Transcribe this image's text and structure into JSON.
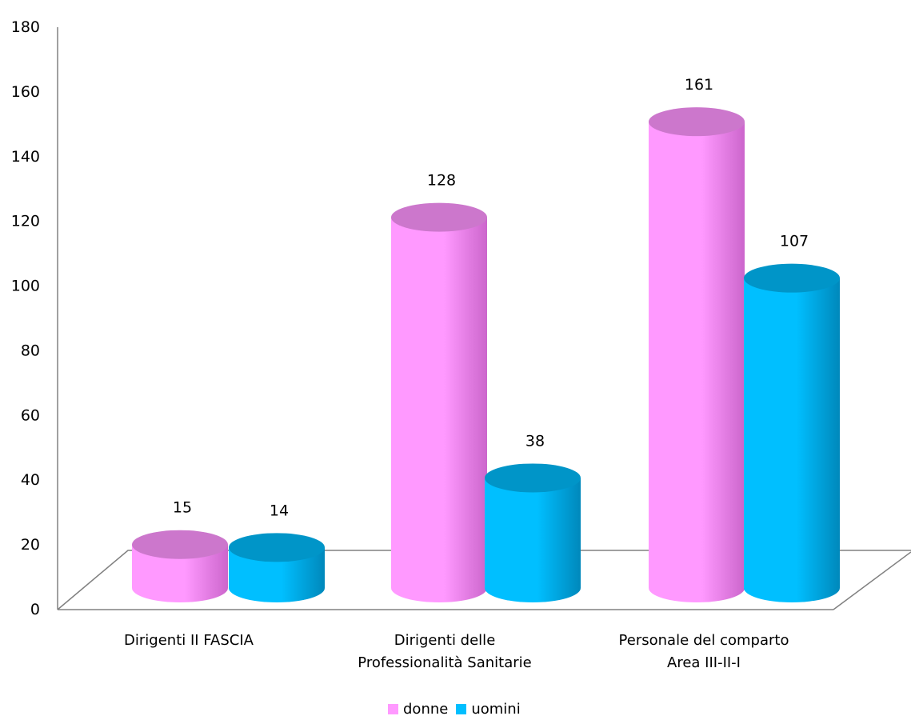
{
  "chart_data": {
    "type": "bar",
    "categories": [
      [
        "Dirigenti II FASCIA"
      ],
      [
        "Dirigenti delle",
        "Professionalità Sanitarie"
      ],
      [
        "Personale del comparto",
        "Area III-II-I"
      ]
    ],
    "series": [
      {
        "name": "donne",
        "values": [
          15,
          128,
          161
        ],
        "color": "#ff99ff",
        "top_color": "#cc77cc",
        "dark_color": "#cc66cc"
      },
      {
        "name": "uomini",
        "values": [
          14,
          38,
          107
        ],
        "color": "#00bfff",
        "top_color": "#0095c8",
        "dark_color": "#0088bb"
      }
    ],
    "ylim": [
      0,
      180
    ],
    "yticks": [
      0,
      20,
      40,
      60,
      80,
      100,
      120,
      140,
      160,
      180
    ],
    "grid": false,
    "legend_position": "bottom",
    "bar_shape": "cylinder-3d",
    "floor_color": "#808080"
  }
}
